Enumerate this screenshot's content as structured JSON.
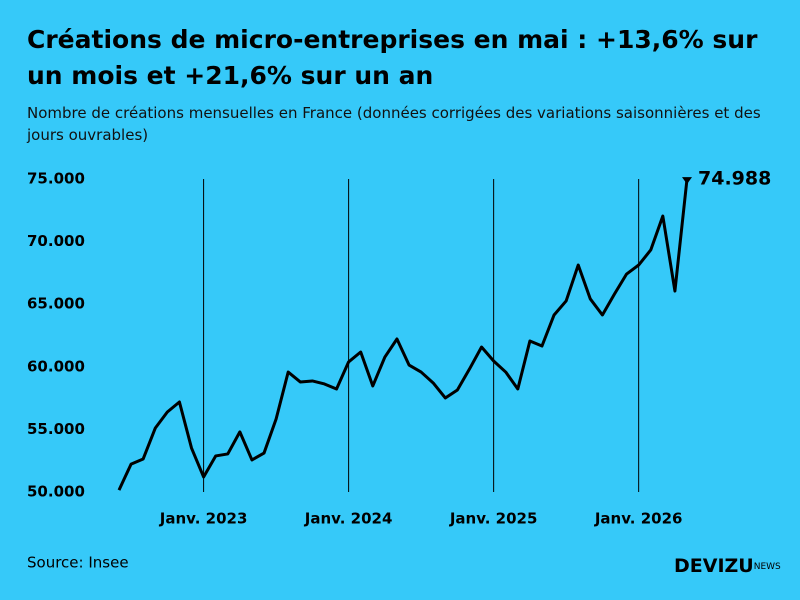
{
  "chart_data": {
    "type": "line",
    "title": "Créations de micro-entreprises en mai : +13,6% sur un mois et +21,6% sur un an",
    "subtitle": "Nombre de créations mensuelles en France (données corrigées des variations saisonnières et des jours ouvrables)",
    "source": "Source: Insee",
    "brand": "DEVIZU",
    "brand_suffix": "NEWS",
    "categories": [
      null,
      null,
      null,
      null,
      null,
      null,
      null,
      "Janv. 2023",
      null,
      null,
      null,
      null,
      null,
      null,
      null,
      null,
      null,
      null,
      null,
      "Janv. 2024",
      null,
      null,
      null,
      null,
      null,
      null,
      null,
      null,
      null,
      null,
      null,
      "Janv. 2025",
      null,
      null,
      null,
      null,
      null,
      null,
      null,
      null,
      null,
      null,
      null,
      "Janv. 2026",
      null,
      null,
      null,
      null
    ],
    "series": [
      {
        "name": null,
        "color": "#000000",
        "values": [
          50150,
          52230,
          52640,
          55100,
          56390,
          57190,
          53510,
          51200,
          52880,
          53040,
          54800,
          52560,
          53110,
          55830,
          59580,
          58790,
          58870,
          58630,
          58230,
          60390,
          61180,
          58470,
          60780,
          62220,
          60140,
          59580,
          58710,
          57510,
          58150,
          59820,
          61580,
          60460,
          59580,
          58230,
          62060,
          61660,
          64140,
          65260,
          68130,
          65420,
          64140,
          65810,
          67410,
          68130,
          69330,
          72040,
          66050,
          74988
        ],
        "value_labels": [
          null,
          null,
          null,
          null,
          null,
          null,
          null,
          null,
          null,
          null,
          null,
          null,
          null,
          null,
          null,
          null,
          null,
          null,
          null,
          null,
          null,
          null,
          null,
          null,
          null,
          null,
          null,
          null,
          null,
          null,
          null,
          null,
          null,
          null,
          null,
          null,
          null,
          null,
          null,
          null,
          null,
          null,
          null,
          null,
          null,
          null,
          null,
          "74.988"
        ]
      }
    ],
    "ylim": [
      50000,
      75000
    ],
    "yticks": [
      {
        "value": 50000,
        "label": "50.000"
      },
      {
        "value": 55000,
        "label": "55.000"
      },
      {
        "value": 60000,
        "label": "60.000"
      },
      {
        "value": 65000,
        "label": "65.000"
      },
      {
        "value": 70000,
        "label": "70.000"
      },
      {
        "value": 75000,
        "label": "75.000"
      }
    ],
    "background": "#36c9f9"
  }
}
